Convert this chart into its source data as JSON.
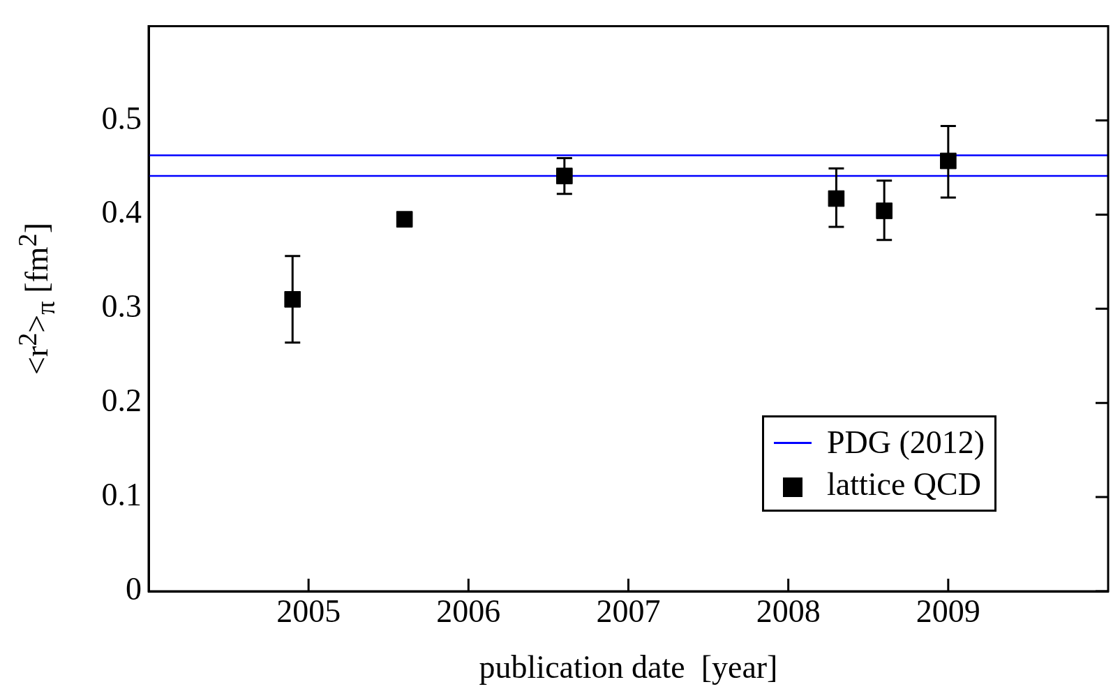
{
  "chart_data": {
    "type": "scatter",
    "xlabel": "publication date  [year]",
    "ylabel": "<r$^{2}$>$_{π}$  [fm$^{2}$]",
    "xlim": [
      2004,
      2010
    ],
    "xticks": [
      2005,
      2006,
      2007,
      2008,
      2009
    ],
    "ylim": [
      0,
      0.6
    ],
    "yticks": [
      0,
      0.1,
      0.2,
      0.3,
      0.4,
      0.5
    ],
    "series": [
      {
        "name": "lattice QCD",
        "color": "#000000",
        "x": [
          2004.9,
          2005.6,
          2006.6,
          2008.3,
          2008.6,
          2009.0
        ],
        "values": [
          0.31,
          0.395,
          0.441,
          0.417,
          0.404,
          0.457
        ],
        "errors": [
          [
            0.264,
            0.356
          ],
          null,
          [
            0.422,
            0.46
          ],
          [
            0.387,
            0.449
          ],
          [
            0.373,
            0.436
          ],
          [
            0.418,
            0.494
          ]
        ]
      }
    ],
    "ref_lines": [
      {
        "axis": "y",
        "value": 0.463,
        "label": "PDG (2012)",
        "color": "#0000ff"
      },
      {
        "axis": "y",
        "value": 0.441,
        "color": "#0000ff"
      }
    ],
    "marker": "square",
    "grid": false,
    "legend": "bottom right"
  }
}
